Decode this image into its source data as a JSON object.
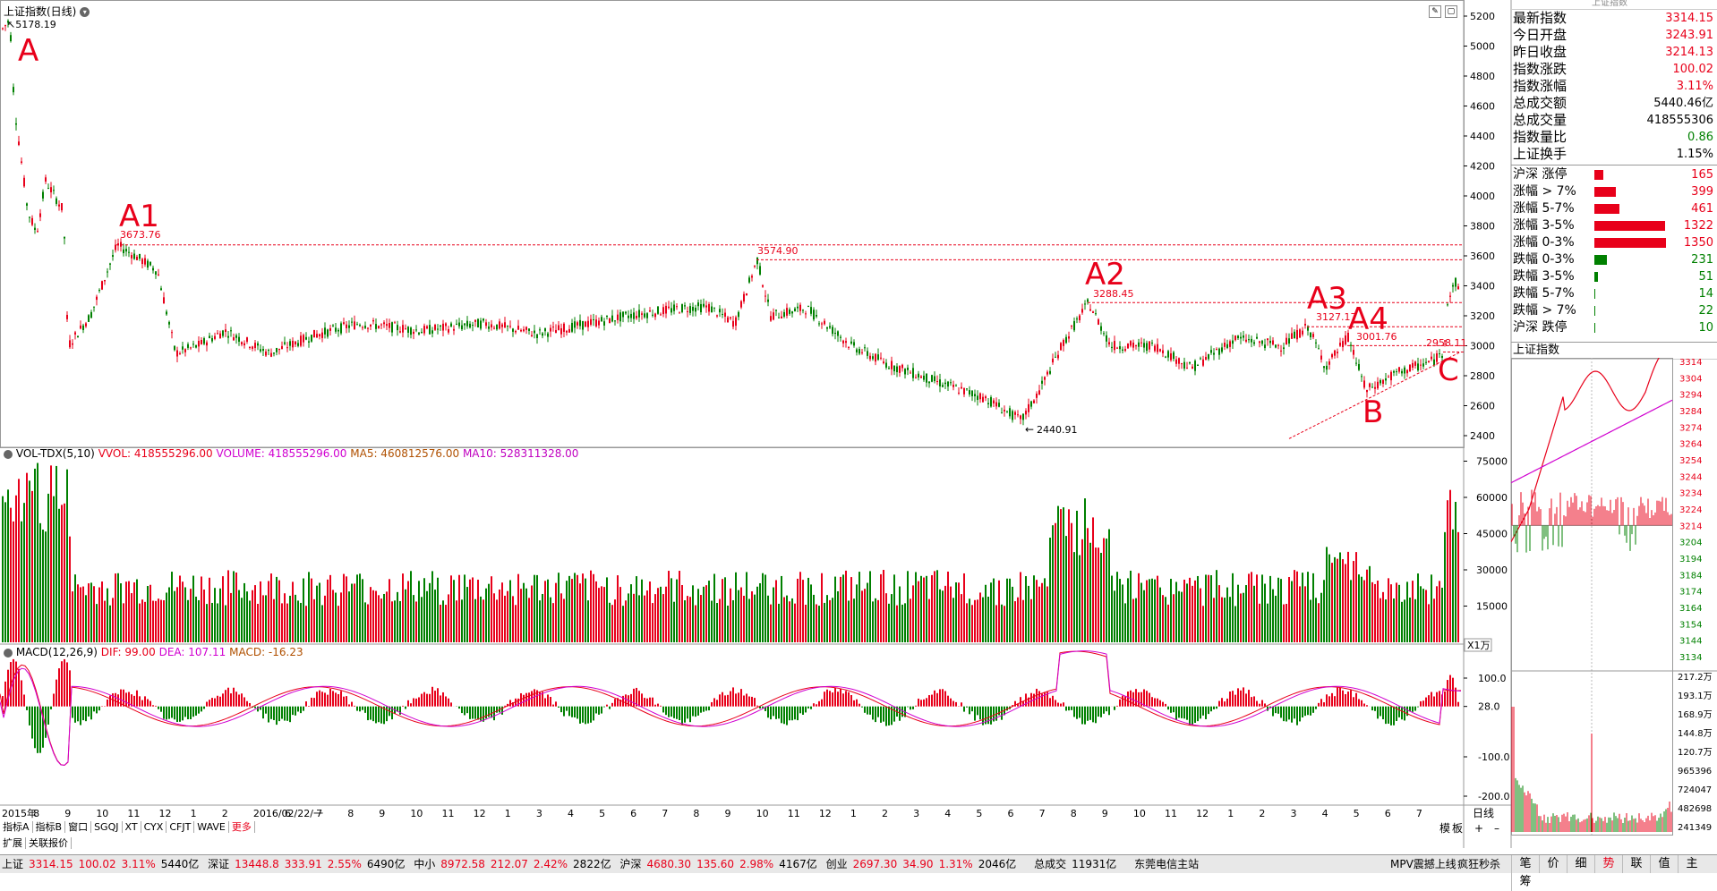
{
  "header": {
    "title": "上证指数(日线)",
    "peak_label": "5178.19"
  },
  "annotations": {
    "A": "A",
    "A1": "A1",
    "A2": "A2",
    "A3": "A3",
    "A4": "A4",
    "B": "B",
    "C": "C",
    "A1_value": "3673.76",
    "peak2_value": "3574.90",
    "A2_value": "3288.45",
    "A3_value": "3127.17",
    "A4_value": "3001.76",
    "C_value": "2958.11",
    "low_value": "2440.91"
  },
  "price_axis": [
    "5200",
    "5000",
    "4800",
    "4600",
    "4400",
    "4200",
    "4000",
    "3800",
    "3600",
    "3400",
    "3200",
    "3000",
    "2800",
    "2600",
    "2400"
  ],
  "volume_header": {
    "name": "VOL-TDX(5,10)",
    "vvol": "VVOL: 418555296.00",
    "volume": "VOLUME: 418555296.00",
    "ma5": "MA5: 460812576.00",
    "ma10": "MA10: 528311328.00"
  },
  "volume_axis": [
    "75000",
    "60000",
    "45000",
    "30000",
    "15000"
  ],
  "volume_unit": "X1万",
  "macd_header": {
    "name": "MACD(12,26,9)",
    "dif": "DIF: 99.00",
    "dea": "DEA: 107.11",
    "macd": "MACD: -16.23"
  },
  "macd_axis": [
    "100.0",
    "28.0",
    "-100.0",
    "-200.0"
  ],
  "date_axis": [
    "2015年",
    "8",
    "9",
    "10",
    "11",
    "12",
    "1",
    "2",
    "2016/02/22/一",
    "6",
    "7",
    "8",
    "9",
    "10",
    "11",
    "12",
    "1",
    "3",
    "4",
    "5",
    "6",
    "7",
    "8",
    "9",
    "10",
    "11",
    "12",
    "1",
    "2",
    "3",
    "4",
    "5",
    "6",
    "7",
    "8",
    "9",
    "10",
    "11",
    "12",
    "1",
    "2",
    "3",
    "4",
    "5",
    "6",
    "7"
  ],
  "date_axis_right": "日线",
  "bottom_tabs": [
    "指标A",
    "指标B",
    "窗口",
    "SGQJ",
    "XT",
    "CYX",
    "CFJT",
    "WAVE",
    "更多"
  ],
  "bottom_tabs_row2": [
    "扩展",
    "关联报价"
  ],
  "scroll_labels": [
    "模",
    "板"
  ],
  "side_panel": {
    "top_cut": "上证指数",
    "stats": [
      {
        "label": "最新指数",
        "value": "3314.15",
        "color": "red"
      },
      {
        "label": "今日开盘",
        "value": "3243.91",
        "color": "red"
      },
      {
        "label": "昨日收盘",
        "value": "3214.13",
        "color": "red"
      },
      {
        "label": "指数涨跌",
        "value": "100.02",
        "color": "red"
      },
      {
        "label": "指数涨幅",
        "value": "3.11%",
        "color": "red"
      },
      {
        "label": "总成交额",
        "value": "5440.46亿",
        "color": "black"
      },
      {
        "label": "总成交量",
        "value": "418555306",
        "color": "black"
      },
      {
        "label": "指数量比",
        "value": "0.86",
        "color": "green"
      },
      {
        "label": "上证换手",
        "value": "1.15%",
        "color": "black"
      }
    ],
    "breadth": [
      {
        "label": "沪深 涨停",
        "value": "165",
        "bar": 0.08,
        "color": "#e8001a"
      },
      {
        "label": "涨幅 > 7%",
        "value": "399",
        "bar": 0.2,
        "color": "#e8001a"
      },
      {
        "label": "涨幅 5-7%",
        "value": "461",
        "bar": 0.23,
        "color": "#e8001a"
      },
      {
        "label": "涨幅 3-5%",
        "value": "1322",
        "bar": 0.66,
        "color": "#e8001a"
      },
      {
        "label": "涨幅 0-3%",
        "value": "1350",
        "bar": 0.67,
        "color": "#e8001a"
      },
      {
        "label": "跌幅 0-3%",
        "value": "231",
        "bar": 0.12,
        "color": "#008000"
      },
      {
        "label": "跌幅 3-5%",
        "value": "51",
        "bar": 0.03,
        "color": "#008000"
      },
      {
        "label": "跌幅 5-7%",
        "value": "14",
        "bar": 0.01,
        "color": "#008000"
      },
      {
        "label": "跌幅 > 7%",
        "value": "22",
        "bar": 0.01,
        "color": "#008000"
      },
      {
        "label": "沪深 跌停",
        "value": "10",
        "bar": 0.005,
        "color": "#008000"
      }
    ],
    "intraday_title": "上证指数",
    "intraday_axis": [
      "3314",
      "3304",
      "3294",
      "3284",
      "3274",
      "3264",
      "3254",
      "3244",
      "3234",
      "3224",
      "3214",
      "3204",
      "3194",
      "3184",
      "3174",
      "3164",
      "3154",
      "3144",
      "3134"
    ],
    "intraday_vol_axis": [
      "217.2万",
      "193.1万",
      "168.9万",
      "144.8万",
      "120.7万",
      "965396",
      "724047",
      "482698",
      "241349"
    ],
    "tabs": [
      "笔",
      "价",
      "细",
      "势",
      "联",
      "值",
      "主",
      "筹"
    ]
  },
  "statusbar": {
    "sh_name": "上证",
    "sh_val": "3314.15",
    "sh_chg": "100.02",
    "sh_pct": "3.11%",
    "sh_amt": "5440亿",
    "sz_name": "深证",
    "sz_val": "13448.8",
    "sz_chg": "333.91",
    "sz_pct": "2.55%",
    "sz_amt": "6490亿",
    "zx_name": "中小",
    "zx_val": "8972.58",
    "zx_chg": "212.07",
    "zx_pct": "2.42%",
    "zx_amt": "2822亿",
    "hs_name": "沪深",
    "hs_val": "4680.30",
    "hs_chg": "135.60",
    "hs_pct": "2.98%",
    "hs_amt": "4167亿",
    "cy_name": "创业",
    "cy_val": "2697.30",
    "cy_chg": "34.90",
    "cy_pct": "1.31%",
    "cy_amt": "2046亿",
    "total_label": "总成交",
    "total_val": "11931亿",
    "broker": "东莞电信主站",
    "mpv": "MPV震撼上线",
    "crazy": "疯狂秒杀"
  }
}
